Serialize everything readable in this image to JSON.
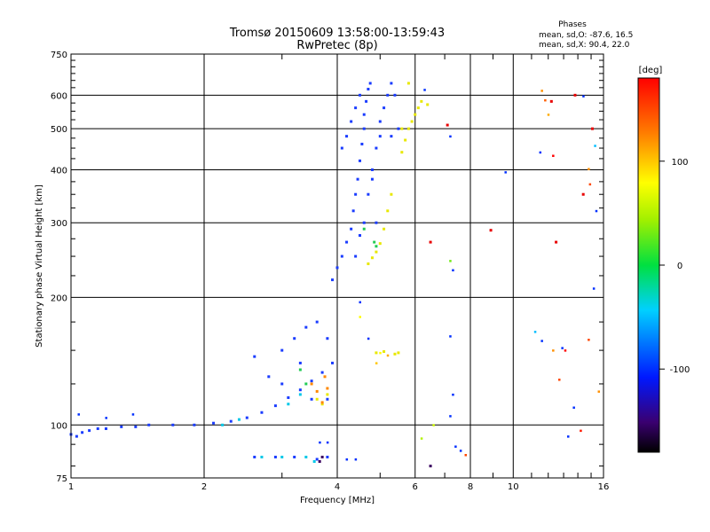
{
  "chart_data": {
    "type": "scatter",
    "title": "Tromsø 20150609 13:58:00-13:59:43",
    "subtitle": "RwPretec (8p)",
    "stats": {
      "heading": "Phases",
      "line1": "mean, sd,O: -87.6, 16.5",
      "line2": "mean, sd,X:  90.4, 22.0"
    },
    "xlabel": "Frequency [MHz]",
    "ylabel": "Stationary phase Virtual Height [km]",
    "x_scale": "log",
    "y_scale": "log",
    "xlim": [
      1,
      16
    ],
    "ylim": [
      75,
      750
    ],
    "x_ticks": [
      1,
      2,
      4,
      6,
      8,
      10,
      16
    ],
    "x_tick_labels": [
      "1",
      "2",
      "4",
      "6",
      "8",
      "10",
      "16"
    ],
    "x_minor_ticks": [
      3,
      5,
      7,
      9,
      11,
      12,
      13,
      14,
      15
    ],
    "y_ticks": [
      75,
      100,
      200,
      300,
      400,
      500,
      600,
      750
    ],
    "y_tick_labels": [
      "75",
      "100",
      "200",
      "300",
      "400",
      "500",
      "600",
      "750"
    ],
    "grid": true,
    "colorbar": {
      "label": "[deg]",
      "range": [
        -180,
        180
      ],
      "ticks": [
        100,
        0,
        -100
      ],
      "tick_labels": [
        "100",
        "0",
        "-100"
      ]
    },
    "series": [
      {
        "phase": -95,
        "color": "#1a3cff",
        "points": [
          [
            1,
            95
          ],
          [
            1.03,
            94
          ],
          [
            1.06,
            96
          ],
          [
            1.1,
            97
          ],
          [
            1.15,
            98
          ],
          [
            1.2,
            98
          ],
          [
            1.3,
            99
          ],
          [
            1.4,
            99
          ],
          [
            1.5,
            100
          ],
          [
            1.7,
            100
          ],
          [
            1.9,
            100
          ],
          [
            2.1,
            101
          ],
          [
            2.3,
            102
          ],
          [
            2.5,
            104
          ],
          [
            2.7,
            107
          ],
          [
            2.9,
            111
          ],
          [
            3.1,
            116
          ],
          [
            3.3,
            121
          ],
          [
            3.5,
            127
          ],
          [
            3.7,
            133
          ],
          [
            3.9,
            140
          ],
          [
            2.6,
            145
          ],
          [
            2.8,
            130
          ],
          [
            3.0,
            150
          ],
          [
            3.2,
            160
          ],
          [
            3.4,
            170
          ],
          [
            3.6,
            175
          ],
          [
            3.8,
            160
          ],
          [
            3.0,
            125
          ],
          [
            3.3,
            140
          ],
          [
            3.5,
            115
          ],
          [
            3.8,
            115
          ],
          [
            2.6,
            84
          ],
          [
            2.9,
            84
          ],
          [
            3.2,
            84
          ],
          [
            3.6,
            83
          ],
          [
            3.8,
            84
          ],
          [
            3.9,
            220
          ],
          [
            4.0,
            235
          ],
          [
            4.1,
            250
          ],
          [
            4.2,
            270
          ],
          [
            4.3,
            290
          ],
          [
            4.35,
            320
          ],
          [
            4.4,
            350
          ],
          [
            4.45,
            380
          ],
          [
            4.5,
            420
          ],
          [
            4.55,
            460
          ],
          [
            4.6,
            500
          ],
          [
            4.6,
            540
          ],
          [
            4.65,
            580
          ],
          [
            4.7,
            620
          ],
          [
            4.75,
            640
          ],
          [
            4.6,
            300
          ],
          [
            4.7,
            350
          ],
          [
            4.8,
            400
          ],
          [
            4.9,
            450
          ],
          [
            5.0,
            480
          ],
          [
            4.1,
            450
          ],
          [
            4.2,
            480
          ],
          [
            4.3,
            520
          ],
          [
            4.4,
            560
          ],
          [
            4.5,
            600
          ],
          [
            5.1,
            560
          ],
          [
            5.2,
            600
          ],
          [
            5.3,
            640
          ],
          [
            5.4,
            600
          ],
          [
            5.0,
            520
          ],
          [
            5.3,
            480
          ],
          [
            5.5,
            500
          ],
          [
            4.8,
            380
          ],
          [
            4.9,
            300
          ],
          [
            4.4,
            250
          ],
          [
            4.5,
            280
          ]
        ]
      },
      {
        "phase": 95,
        "color": "#e8e800",
        "points": [
          [
            4.7,
            240
          ],
          [
            4.8,
            248
          ],
          [
            4.9,
            256
          ],
          [
            5.0,
            268
          ],
          [
            5.1,
            290
          ],
          [
            5.2,
            320
          ],
          [
            5.3,
            350
          ],
          [
            5.6,
            440
          ],
          [
            5.7,
            470
          ],
          [
            5.8,
            500
          ],
          [
            5.9,
            520
          ],
          [
            6.0,
            540
          ],
          [
            6.1,
            560
          ],
          [
            5.8,
            640
          ],
          [
            6.2,
            580
          ],
          [
            6.4,
            570
          ],
          [
            5.6,
            500
          ],
          [
            4.9,
            148
          ],
          [
            5.1,
            149
          ],
          [
            5.4,
            147
          ],
          [
            5.5,
            148
          ],
          [
            3.6,
            115
          ],
          [
            3.7,
            112
          ],
          [
            3.8,
            118
          ]
        ]
      },
      {
        "phase": 130,
        "color": "#ff8800",
        "points": [
          [
            3.5,
            125
          ],
          [
            3.6,
            120
          ],
          [
            3.7,
            113
          ],
          [
            3.8,
            122
          ],
          [
            3.75,
            130
          ]
        ]
      },
      {
        "phase": 30,
        "color": "#22cc55",
        "points": [
          [
            4.85,
            270
          ],
          [
            4.9,
            264
          ],
          [
            4.6,
            290
          ],
          [
            3.3,
            135
          ],
          [
            3.4,
            125
          ]
        ]
      },
      {
        "phase": -50,
        "color": "#00c8e8",
        "points": [
          [
            2.2,
            100
          ],
          [
            2.4,
            103
          ],
          [
            3.0,
            84
          ],
          [
            3.4,
            84
          ],
          [
            3.55,
            82
          ],
          [
            3.1,
            112
          ],
          [
            3.3,
            118
          ],
          [
            2.7,
            84
          ]
        ]
      },
      {
        "phase": -145,
        "color": "#3a0060",
        "points": [
          [
            3.65,
            82
          ],
          [
            3.7,
            84
          ],
          [
            6.5,
            80
          ]
        ]
      },
      {
        "phase": 170,
        "color": "#e80000",
        "points": [
          [
            6.5,
            270
          ],
          [
            7.1,
            510
          ],
          [
            8.9,
            288
          ],
          [
            12.5,
            270
          ],
          [
            14.4,
            350
          ],
          [
            15.1,
            500
          ],
          [
            12.2,
            580
          ],
          [
            13.8,
            600
          ]
        ]
      }
    ],
    "sparse_high": [
      [
        6.3,
        618,
        -100
      ],
      [
        7.2,
        480,
        -100
      ],
      [
        7.2,
        244,
        30
      ],
      [
        7.3,
        232,
        -100
      ],
      [
        7.2,
        162,
        -100
      ],
      [
        7.3,
        118,
        -100
      ],
      [
        7.2,
        105,
        -100
      ],
      [
        7.4,
        89,
        -100
      ],
      [
        9.6,
        395,
        -100
      ],
      [
        11.5,
        440,
        -100
      ],
      [
        12.3,
        432,
        180
      ],
      [
        11.6,
        615,
        120
      ],
      [
        11.8,
        584,
        140
      ],
      [
        12.0,
        540,
        110
      ],
      [
        14.4,
        597,
        -100
      ],
      [
        14.8,
        402,
        120
      ],
      [
        15.3,
        456,
        -50
      ],
      [
        15.4,
        320,
        -100
      ],
      [
        11.2,
        166,
        -50
      ],
      [
        11.6,
        158,
        -100
      ],
      [
        12.3,
        150,
        120
      ],
      [
        12.9,
        152,
        -100
      ],
      [
        13.1,
        150,
        180
      ],
      [
        14.8,
        159,
        150
      ],
      [
        15.6,
        120,
        120
      ],
      [
        15.2,
        210,
        -100
      ],
      [
        14.9,
        370,
        150
      ],
      [
        12.7,
        128,
        150
      ],
      [
        13.3,
        94,
        -100
      ],
      [
        13.7,
        110,
        -100
      ],
      [
        14.2,
        97,
        170
      ],
      [
        6.2,
        93,
        50
      ],
      [
        6.6,
        100,
        60
      ],
      [
        7.6,
        87,
        -100
      ],
      [
        7.8,
        85,
        150
      ],
      [
        4.5,
        180,
        80
      ],
      [
        4.5,
        195,
        -100
      ],
      [
        4.7,
        160,
        -100
      ],
      [
        3.65,
        91,
        -100
      ],
      [
        3.8,
        91,
        -100
      ],
      [
        4.2,
        83,
        -100
      ],
      [
        4.4,
        83,
        -100
      ],
      [
        4.9,
        140,
        100
      ],
      [
        5.0,
        148,
        80
      ],
      [
        5.2,
        146,
        110
      ],
      [
        1.04,
        106,
        -100
      ],
      [
        1.2,
        104,
        -100
      ],
      [
        1.38,
        106,
        -100
      ]
    ]
  }
}
